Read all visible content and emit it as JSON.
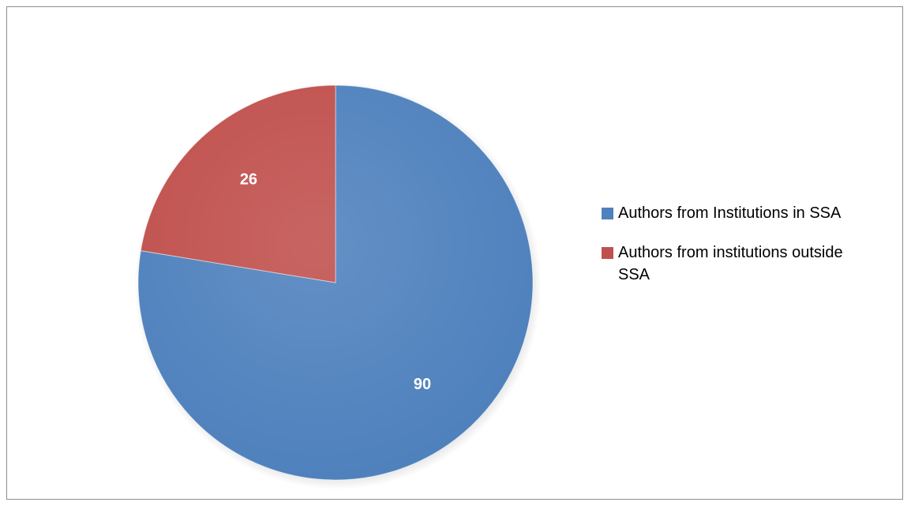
{
  "chart_data": {
    "type": "pie",
    "title": "",
    "slices": [
      {
        "label": "Authors from Institutions in SSA",
        "value": 90,
        "color": "#4f81bd"
      },
      {
        "label": "Authors from institutions outside SSA",
        "value": 26,
        "color": "#c0504d"
      }
    ],
    "data_labels": [
      "90",
      "26"
    ],
    "legend_position": "right",
    "start_angle_deg": 0,
    "direction": "clockwise"
  }
}
